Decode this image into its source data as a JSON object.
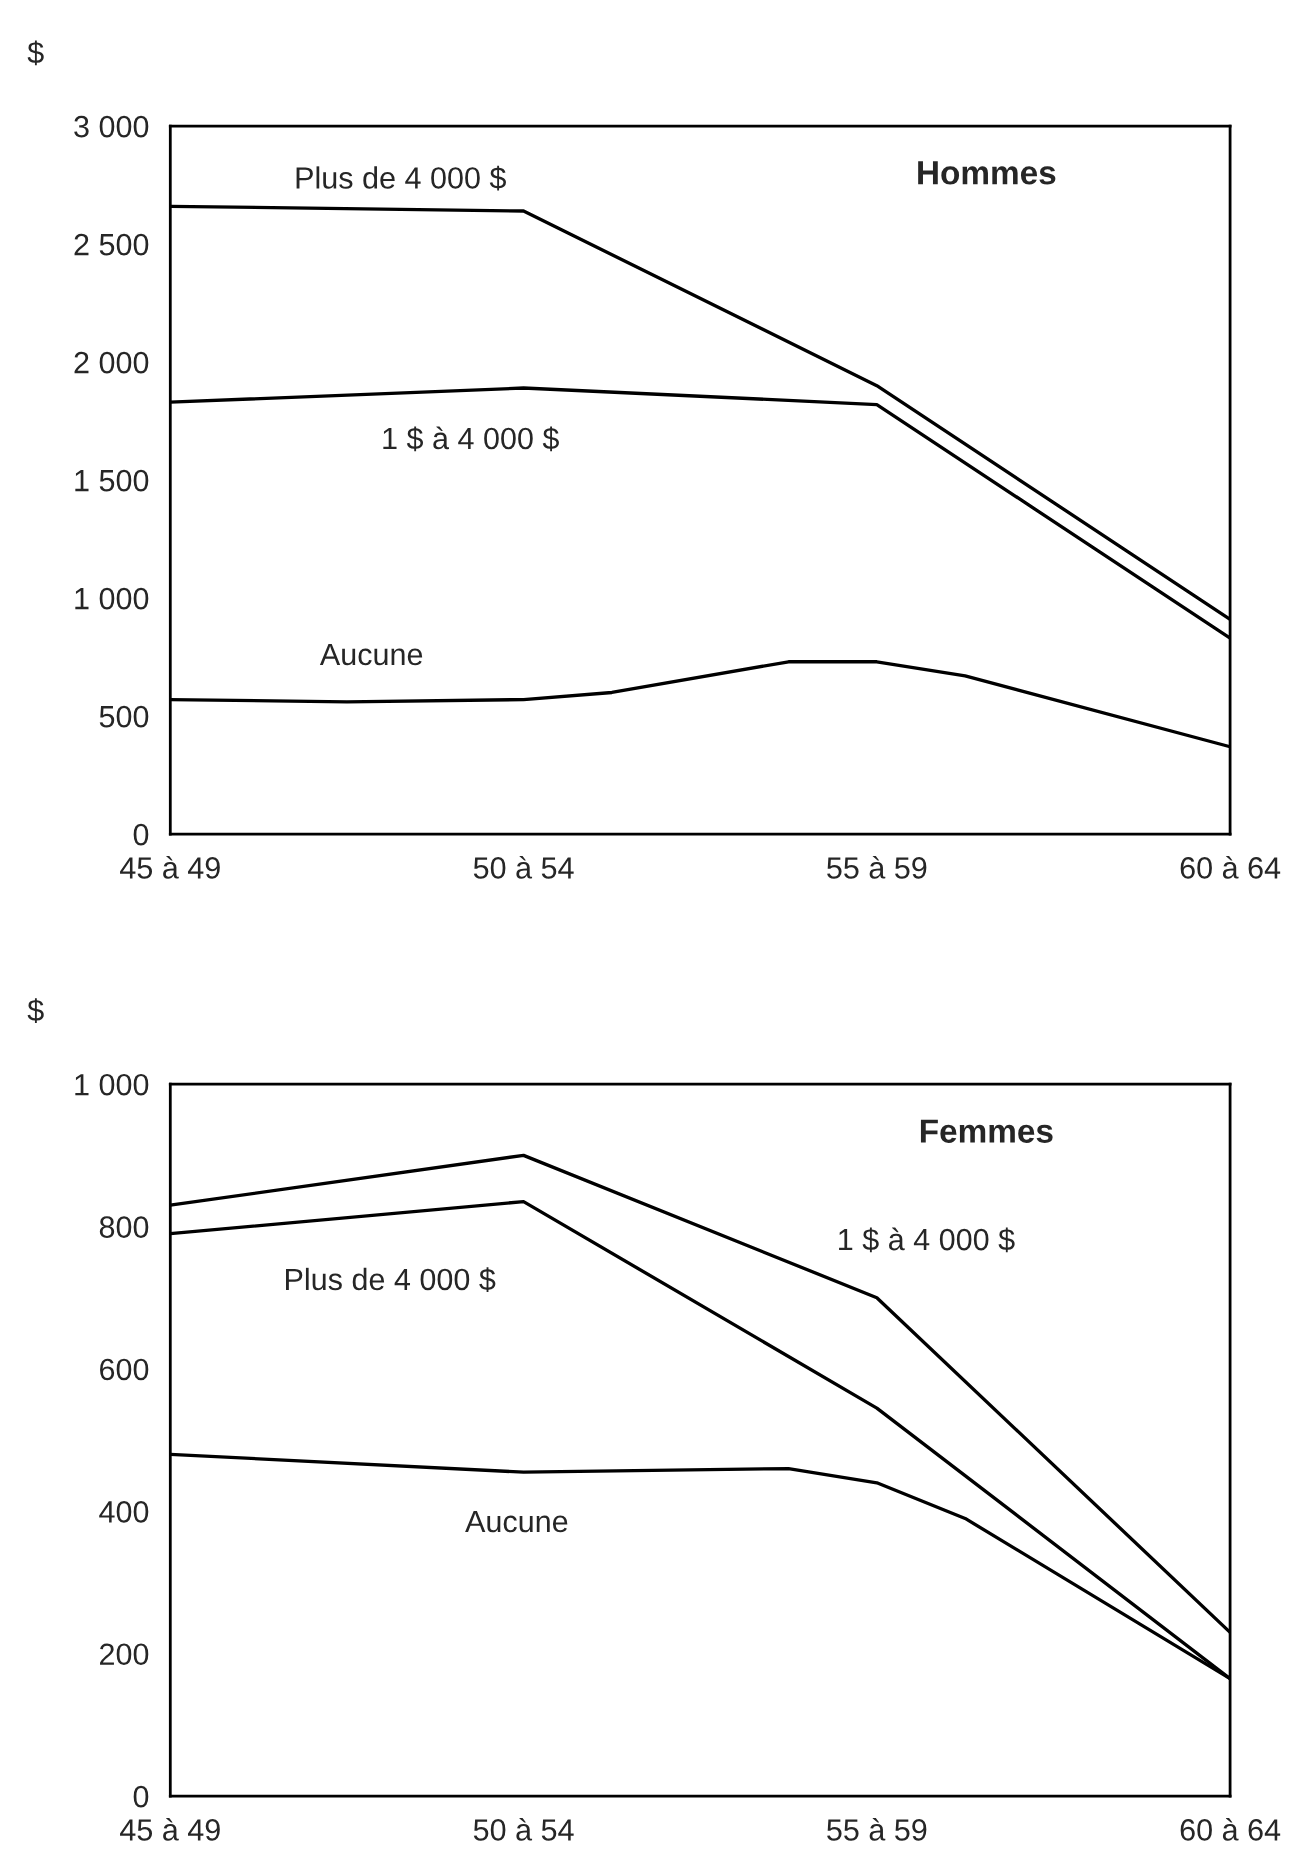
{
  "chart_data": [
    {
      "type": "line",
      "title": "Hommes",
      "ylabel": "$",
      "categories": [
        "45 à 49",
        null,
        null,
        null,
        "50 à 54",
        null,
        null,
        null,
        "55 à 59",
        null,
        null,
        null,
        "60 à 64"
      ],
      "series": [
        {
          "name": "Plus de 4 000 $",
          "values": [
            2660,
            null,
            null,
            null,
            2640,
            null,
            null,
            null,
            1900,
            null,
            null,
            null,
            910
          ],
          "color": "#000000"
        },
        {
          "name": "1 $ à 4 000 $",
          "values": [
            1830,
            null,
            null,
            null,
            1890,
            null,
            null,
            null,
            1820,
            null,
            null,
            null,
            830
          ],
          "color": "#000000"
        },
        {
          "name": "Aucune",
          "values": [
            570,
            null,
            560,
            null,
            570,
            600,
            null,
            730,
            730,
            670,
            null,
            null,
            370
          ],
          "color": "#000000"
        }
      ],
      "ylim": [
        0,
        3000
      ],
      "yticks": [
        {
          "value": 0,
          "label": "0"
        },
        {
          "value": 500,
          "label": "500"
        },
        {
          "value": 1000,
          "label": "1 000"
        },
        {
          "value": 1500,
          "label": "1 500"
        },
        {
          "value": 2000,
          "label": "2 000"
        },
        {
          "value": 2500,
          "label": "2 500"
        },
        {
          "value": 3000,
          "label": "3 000"
        }
      ],
      "grid": false,
      "legend": false,
      "marker": "none",
      "line_style": "solid"
    },
    {
      "type": "line",
      "title": "Femmes",
      "ylabel": "$",
      "categories": [
        "45 à 49",
        null,
        null,
        null,
        "50 à 54",
        null,
        null,
        null,
        "55 à 59",
        null,
        null,
        null,
        "60 à 64"
      ],
      "series": [
        {
          "name": "1 $ à 4 000 $",
          "values": [
            830,
            null,
            null,
            null,
            900,
            null,
            null,
            null,
            700,
            null,
            null,
            null,
            230
          ],
          "color": "#000000"
        },
        {
          "name": "Plus de 4 000 $",
          "values": [
            790,
            null,
            null,
            null,
            835,
            null,
            null,
            null,
            545,
            null,
            null,
            null,
            165
          ],
          "color": "#000000"
        },
        {
          "name": "Aucune",
          "values": [
            480,
            null,
            null,
            null,
            455,
            null,
            null,
            460,
            440,
            390,
            null,
            null,
            165
          ],
          "color": "#000000"
        }
      ],
      "ylim": [
        0,
        1000
      ],
      "yticks": [
        {
          "value": 0,
          "label": "0"
        },
        {
          "value": 200,
          "label": "200"
        },
        {
          "value": 400,
          "label": "400"
        },
        {
          "value": 600,
          "label": "600"
        },
        {
          "value": 800,
          "label": "800"
        },
        {
          "value": 1000,
          "label": "1 000"
        }
      ],
      "grid": false,
      "legend": false,
      "marker": "none",
      "line_style": "solid"
    }
  ]
}
